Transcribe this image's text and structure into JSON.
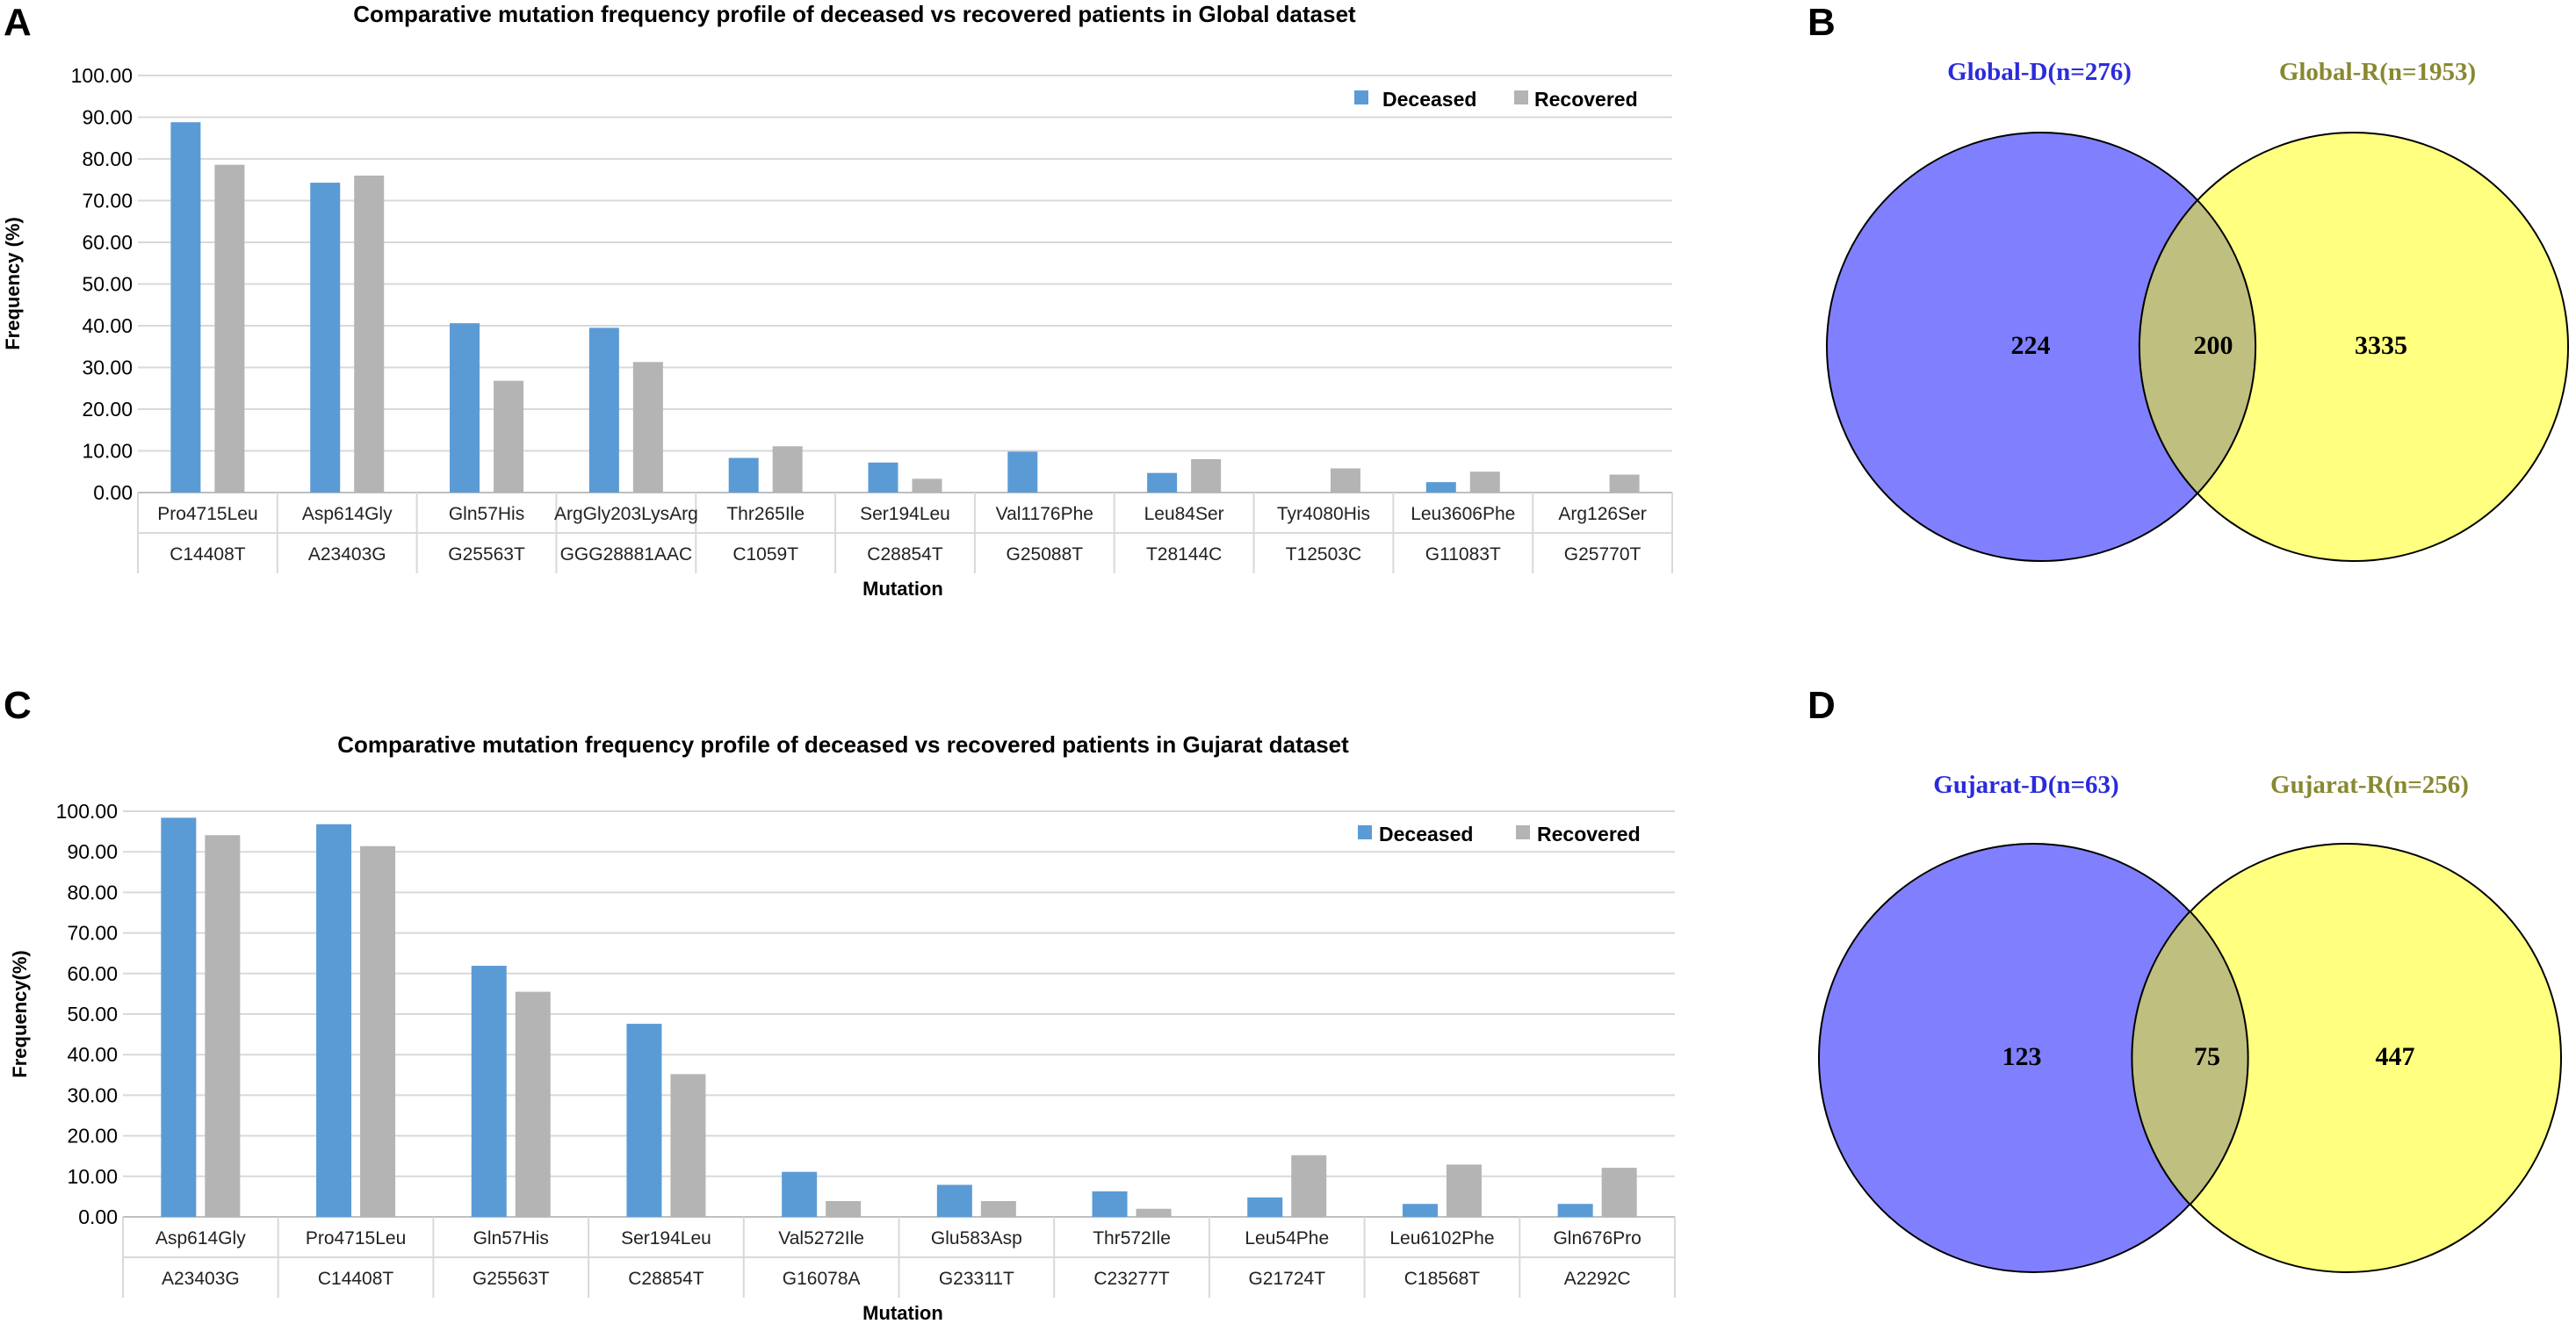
{
  "panels": {
    "A": "A",
    "B": "B",
    "C": "C",
    "D": "D"
  },
  "chart_data": [
    {
      "type": "bar",
      "title": "Comparative mutation frequency profile of deceased vs recovered patients in Global dataset",
      "xlabel": "Mutation",
      "ylabel": "Frequency (%)",
      "ylim": [
        0,
        100
      ],
      "yticks": [
        "0.00",
        "10.00",
        "20.00",
        "30.00",
        "40.00",
        "50.00",
        "60.00",
        "70.00",
        "80.00",
        "90.00",
        "100.00"
      ],
      "legend_position": "top-right",
      "categories": [
        "Pro4715Leu",
        "Asp614Gly",
        "Gln57His",
        "ArgGly203LysArg",
        "Thr265Ile",
        "Ser194Leu",
        "Val1176Phe",
        "Leu84Ser",
        "Tyr4080His",
        "Leu3606Phe",
        "Arg126Ser"
      ],
      "subcategories": [
        "C14408T",
        "A23403G",
        "G25563T",
        "GGG28881AAC",
        "C1059T",
        "C28854T",
        "G25088T",
        "T28144C",
        "T12503C",
        "G11083T",
        "G25770T"
      ],
      "series": [
        {
          "name": "Deceased",
          "color": "#5b9bd5",
          "values": [
            88.8,
            74.3,
            40.6,
            39.5,
            8.3,
            7.2,
            9.8,
            4.7,
            0,
            2.5,
            0
          ]
        },
        {
          "name": "Recovered",
          "color": "#b4b4b4",
          "values": [
            78.6,
            76.0,
            26.8,
            31.3,
            11.1,
            3.3,
            0,
            8.0,
            5.8,
            5.0,
            4.3
          ]
        }
      ]
    },
    {
      "type": "bar",
      "title": "Comparative mutation frequency profile of deceased vs recovered patients in Gujarat dataset",
      "xlabel": "Mutation",
      "ylabel": "Frequency(%)",
      "ylim": [
        0,
        100
      ],
      "yticks": [
        "0.00",
        "10.00",
        "20.00",
        "30.00",
        "40.00",
        "50.00",
        "60.00",
        "70.00",
        "80.00",
        "90.00",
        "100.00"
      ],
      "legend_position": "top-right",
      "categories": [
        "Asp614Gly",
        "Pro4715Leu",
        "Gln57His",
        "Ser194Leu",
        "Val5272Ile",
        "Glu583Asp",
        "Thr572Ile",
        "Leu54Phe",
        "Leu6102Phe",
        "Gln676Pro"
      ],
      "subcategories": [
        "A23403G",
        "C14408T",
        "G25563T",
        "C28854T",
        "G16078A",
        "G23311T",
        "C23277T",
        "G21724T",
        "C18568T",
        "A2292C"
      ],
      "series": [
        {
          "name": "Deceased",
          "color": "#5b9bd5",
          "values": [
            98.4,
            96.8,
            61.9,
            47.6,
            11.1,
            7.9,
            6.3,
            4.8,
            3.2,
            3.2
          ]
        },
        {
          "name": "Recovered",
          "color": "#b4b4b4",
          "values": [
            94.1,
            91.4,
            55.5,
            35.2,
            3.9,
            3.9,
            2.0,
            15.2,
            12.9,
            12.1
          ]
        }
      ]
    },
    {
      "type": "venn",
      "left_label": "Global-D(n=276)",
      "right_label": "Global-R(n=1953)",
      "left_only": "224",
      "overlap": "200",
      "right_only": "3335",
      "left_color": "#8080ff",
      "right_color": "#ffff80",
      "overlap_color": "#bfbf80",
      "left_title_color": "#2b2bdc",
      "right_title_color": "#888830"
    },
    {
      "type": "venn",
      "left_label": "Gujarat-D(n=63)",
      "right_label": "Gujarat-R(n=256)",
      "left_only": "123",
      "overlap": "75",
      "right_only": "447",
      "left_color": "#8080ff",
      "right_color": "#ffff80",
      "overlap_color": "#bfbf80",
      "left_title_color": "#2b2bdc",
      "right_title_color": "#888830"
    }
  ]
}
